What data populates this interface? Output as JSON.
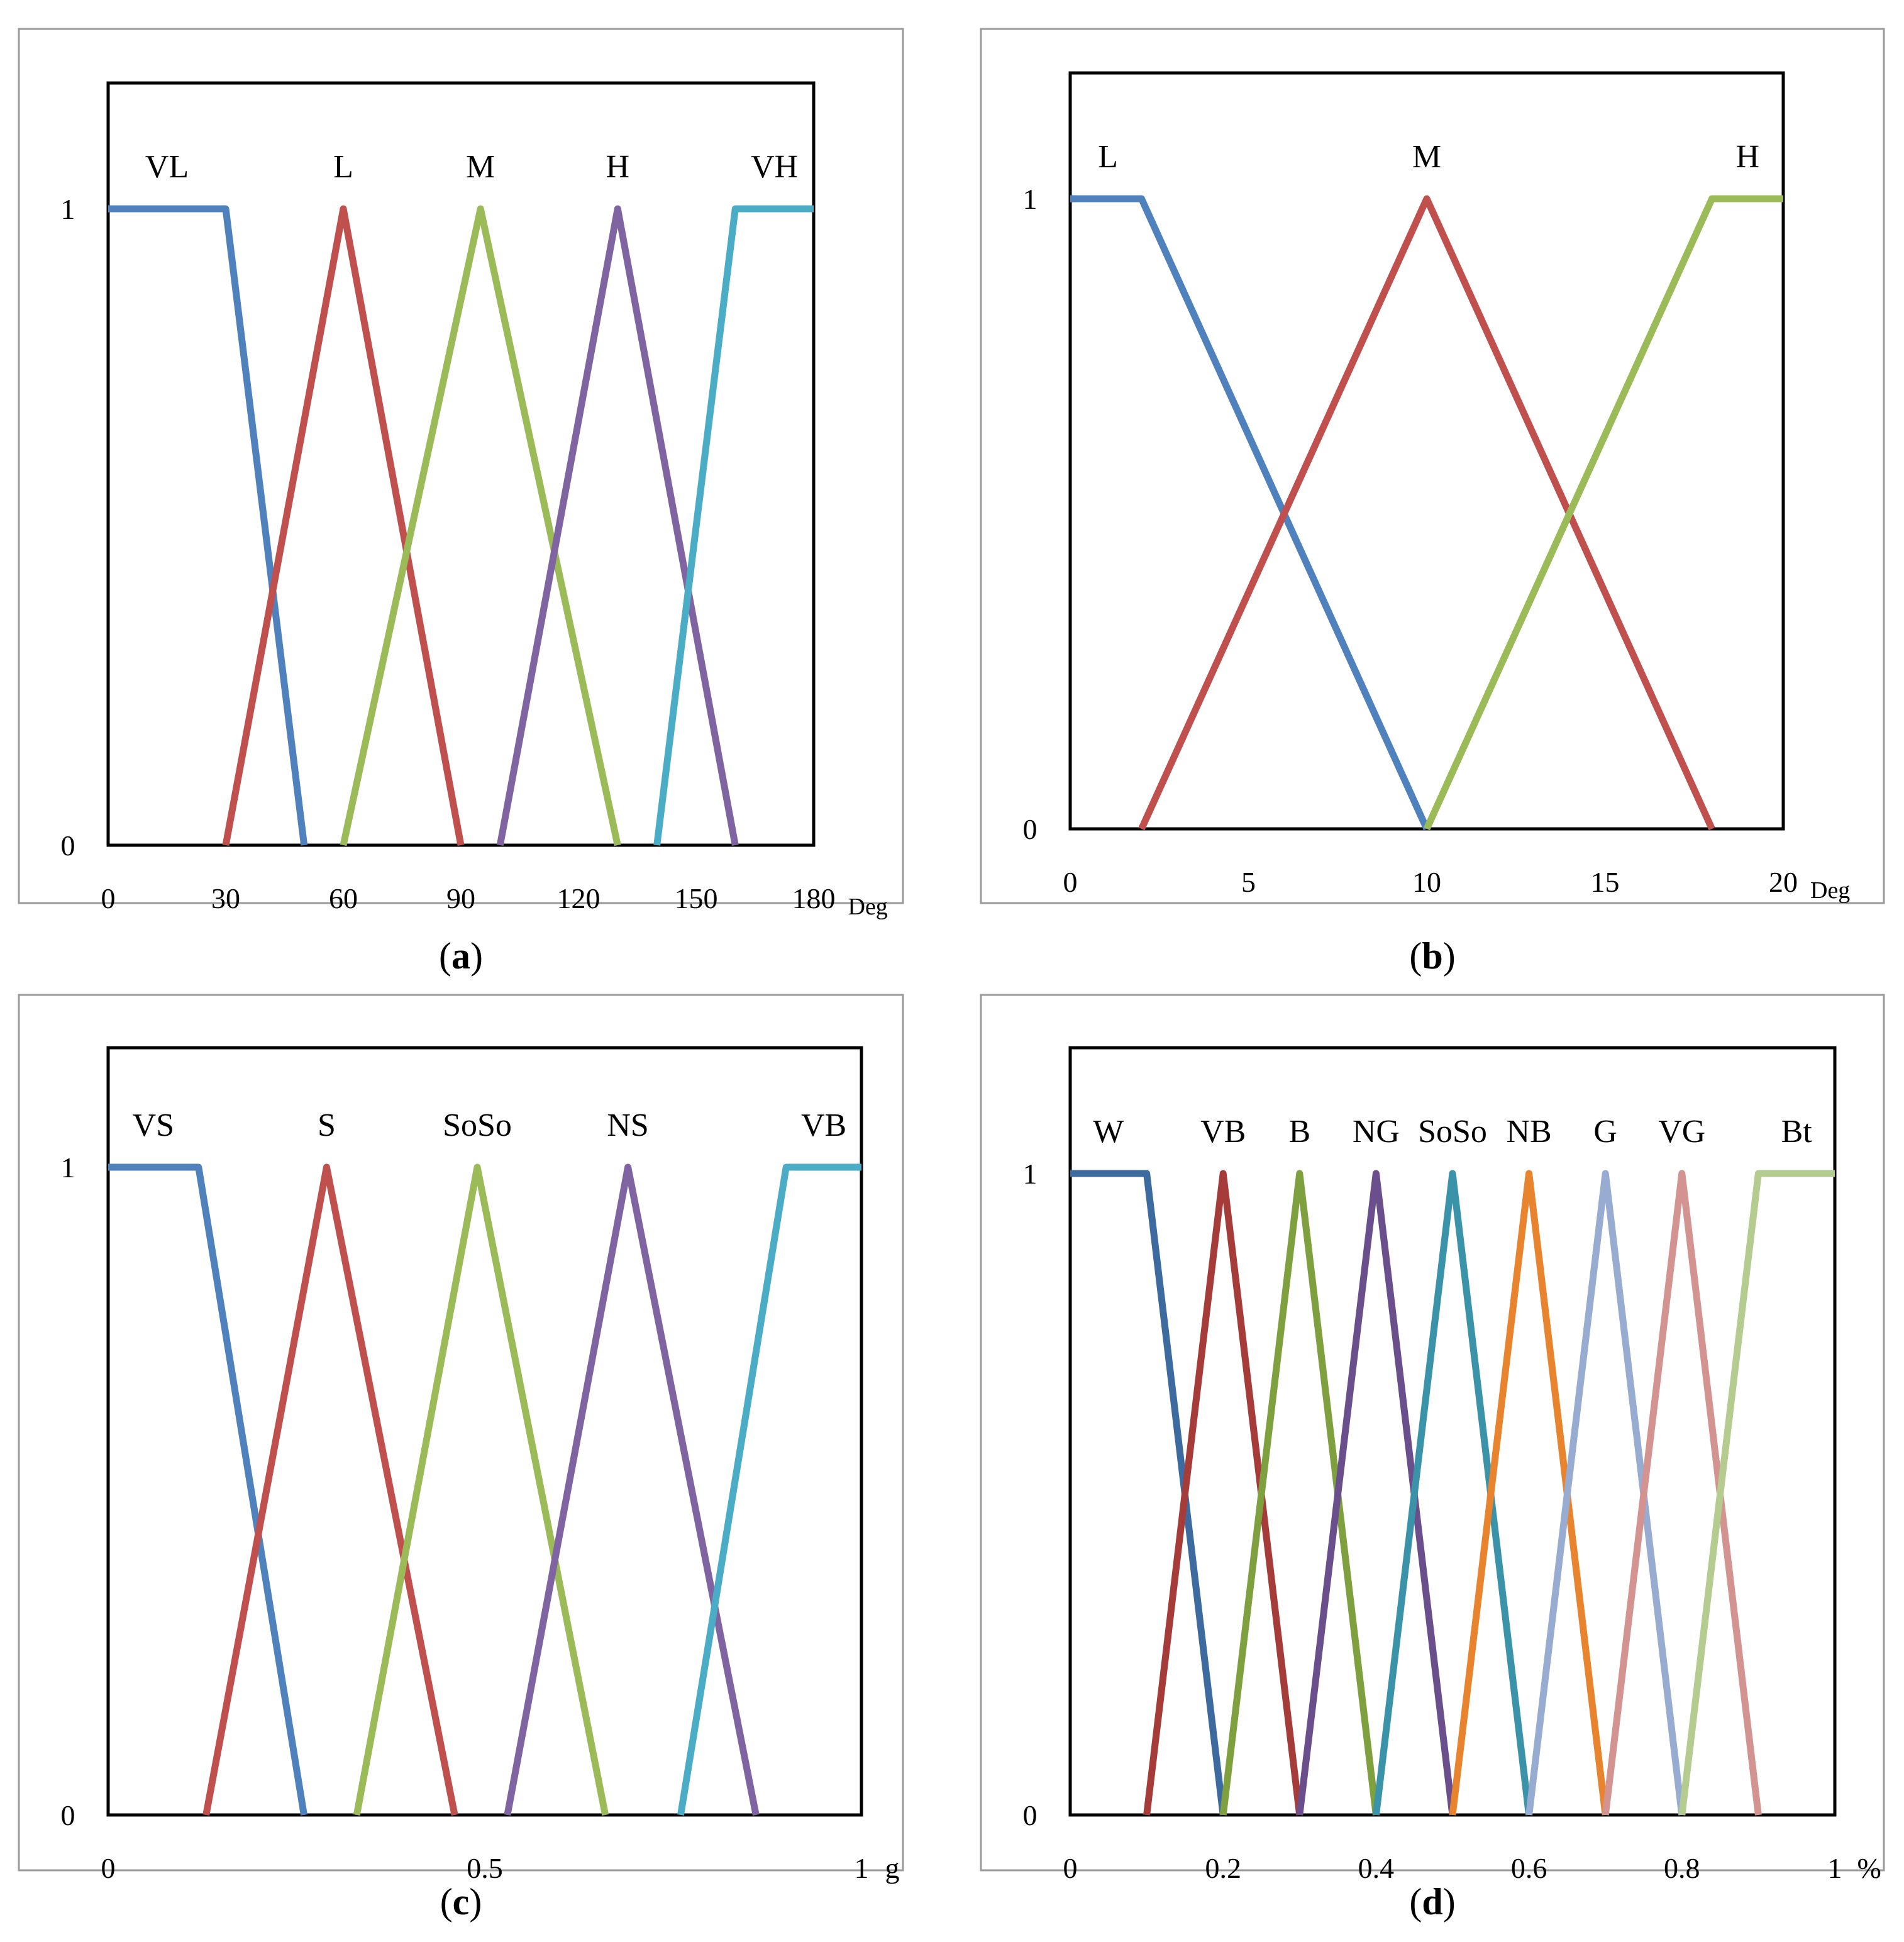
{
  "chart_data": [
    {
      "type": "line",
      "panel": "a",
      "caption_open": "(",
      "caption_letter": "a",
      "caption_close": ")",
      "x_unit": "Deg",
      "xlim": [
        0,
        180
      ],
      "ylim": [
        0,
        1
      ],
      "x_ticks": [
        0,
        30,
        60,
        90,
        120,
        150,
        180
      ],
      "y_ticks": [
        0,
        1
      ],
      "series": [
        {
          "name": "VL",
          "color": "#4f81bd",
          "points": [
            [
              0,
              1
            ],
            [
              30,
              1
            ],
            [
              50,
              0
            ]
          ]
        },
        {
          "name": "L",
          "color": "#c0504d",
          "points": [
            [
              30,
              0
            ],
            [
              60,
              1
            ],
            [
              90,
              0
            ]
          ]
        },
        {
          "name": "M",
          "color": "#9bbb59",
          "points": [
            [
              60,
              0
            ],
            [
              95,
              1
            ],
            [
              130,
              0
            ]
          ]
        },
        {
          "name": "H",
          "color": "#8064a2",
          "points": [
            [
              100,
              0
            ],
            [
              130,
              1
            ],
            [
              160,
              0
            ]
          ]
        },
        {
          "name": "VH",
          "color": "#4bacc6",
          "points": [
            [
              140,
              0
            ],
            [
              160,
              1
            ],
            [
              180,
              1
            ]
          ]
        }
      ]
    },
    {
      "type": "line",
      "panel": "b",
      "caption_open": "(",
      "caption_letter": "b",
      "caption_close": ")",
      "x_unit": "Deg",
      "xlim": [
        0,
        20
      ],
      "ylim": [
        0,
        1
      ],
      "x_ticks": [
        0,
        5,
        10,
        15,
        20
      ],
      "y_ticks": [
        0,
        1
      ],
      "series": [
        {
          "name": "L",
          "color": "#4f81bd",
          "points": [
            [
              0,
              1
            ],
            [
              2,
              1
            ],
            [
              10,
              0
            ]
          ]
        },
        {
          "name": "M",
          "color": "#c0504d",
          "points": [
            [
              2,
              0
            ],
            [
              10,
              1
            ],
            [
              18,
              0
            ]
          ]
        },
        {
          "name": "H",
          "color": "#9bbb59",
          "points": [
            [
              10,
              0
            ],
            [
              18,
              1
            ],
            [
              20,
              1
            ]
          ]
        }
      ]
    },
    {
      "type": "line",
      "panel": "c",
      "caption_open": "(",
      "caption_letter": "c",
      "caption_close": ")",
      "x_unit": "g",
      "xlim": [
        0,
        1
      ],
      "ylim": [
        0,
        1
      ],
      "x_ticks": [
        0,
        0.5,
        1
      ],
      "y_ticks": [
        0,
        1
      ],
      "series": [
        {
          "name": "VS",
          "color": "#4f81bd",
          "points": [
            [
              0,
              1
            ],
            [
              0.12,
              1
            ],
            [
              0.26,
              0
            ]
          ]
        },
        {
          "name": "S",
          "color": "#c0504d",
          "points": [
            [
              0.13,
              0
            ],
            [
              0.29,
              1
            ],
            [
              0.46,
              0
            ]
          ]
        },
        {
          "name": "SoSo",
          "color": "#9bbb59",
          "points": [
            [
              0.33,
              0
            ],
            [
              0.49,
              1
            ],
            [
              0.66,
              0
            ]
          ]
        },
        {
          "name": "NS",
          "color": "#8064a2",
          "points": [
            [
              0.53,
              0
            ],
            [
              0.69,
              1
            ],
            [
              0.86,
              0
            ]
          ]
        },
        {
          "name": "VB",
          "color": "#4bacc6",
          "points": [
            [
              0.76,
              0
            ],
            [
              0.9,
              1
            ],
            [
              1,
              1
            ]
          ]
        }
      ]
    },
    {
      "type": "line",
      "panel": "d",
      "caption_open": "(",
      "caption_letter": "d",
      "caption_close": ")",
      "x_unit": "%",
      "xlim": [
        0,
        1
      ],
      "ylim": [
        0,
        1
      ],
      "x_ticks": [
        0,
        0.2,
        0.4,
        0.6,
        0.8,
        1
      ],
      "y_ticks": [
        0,
        1
      ],
      "series": [
        {
          "name": "W",
          "color": "#3e6b9f",
          "points": [
            [
              0,
              1
            ],
            [
              0.1,
              1
            ],
            [
              0.2,
              0
            ]
          ]
        },
        {
          "name": "VB",
          "color": "#a63c3a",
          "points": [
            [
              0.1,
              0
            ],
            [
              0.2,
              1
            ],
            [
              0.3,
              0
            ]
          ]
        },
        {
          "name": "B",
          "color": "#7fa03e",
          "points": [
            [
              0.2,
              0
            ],
            [
              0.3,
              1
            ],
            [
              0.4,
              0
            ]
          ]
        },
        {
          "name": "NG",
          "color": "#6a4f8c",
          "points": [
            [
              0.3,
              0
            ],
            [
              0.4,
              1
            ],
            [
              0.5,
              0
            ]
          ]
        },
        {
          "name": "SoSo",
          "color": "#3a93a8",
          "points": [
            [
              0.4,
              0
            ],
            [
              0.5,
              1
            ],
            [
              0.6,
              0
            ]
          ]
        },
        {
          "name": "NB",
          "color": "#e8832e",
          "points": [
            [
              0.5,
              0
            ],
            [
              0.6,
              1
            ],
            [
              0.7,
              0
            ]
          ]
        },
        {
          "name": "G",
          "color": "#98acd2",
          "points": [
            [
              0.6,
              0
            ],
            [
              0.7,
              1
            ],
            [
              0.8,
              0
            ]
          ]
        },
        {
          "name": "VG",
          "color": "#d39391",
          "points": [
            [
              0.7,
              0
            ],
            [
              0.8,
              1
            ],
            [
              0.9,
              0
            ]
          ]
        },
        {
          "name": "Bt",
          "color": "#b5cc91",
          "points": [
            [
              0.8,
              0
            ],
            [
              0.9,
              1
            ],
            [
              1,
              1
            ]
          ]
        }
      ]
    }
  ]
}
